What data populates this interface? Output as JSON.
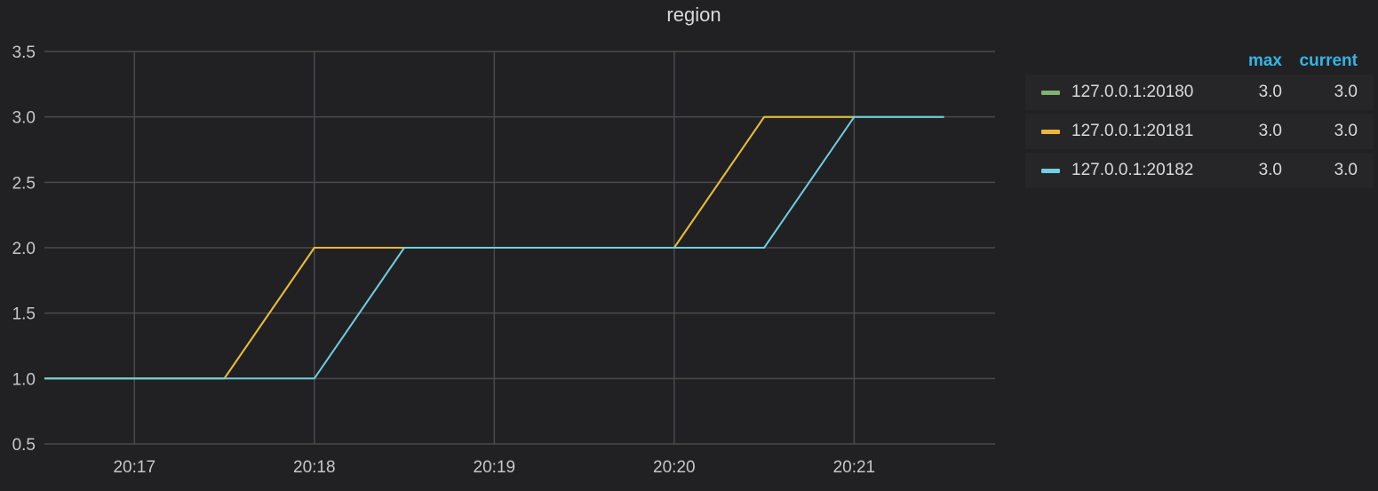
{
  "panel": {
    "title": "region"
  },
  "legend": {
    "headers": {
      "max": "max",
      "current": "current"
    },
    "items": [
      {
        "name": "127.0.0.1:20180",
        "color": "#7eb26d",
        "max": "3.0",
        "current": "3.0"
      },
      {
        "name": "127.0.0.1:20181",
        "color": "#eab839",
        "max": "3.0",
        "current": "3.0"
      },
      {
        "name": "127.0.0.1:20182",
        "color": "#6ed0e0",
        "max": "3.0",
        "current": "3.0"
      }
    ]
  },
  "chart_data": {
    "type": "line",
    "title": "region",
    "xlabel": "",
    "ylabel": "",
    "xlim": [
      "20:16:30",
      "20:21:47"
    ],
    "ylim": [
      0.5,
      3.5
    ],
    "y_ticks": [
      "0.5",
      "1.0",
      "1.5",
      "2.0",
      "2.5",
      "3.0",
      "3.5"
    ],
    "x_ticks": [
      "20:17",
      "20:18",
      "20:19",
      "20:20",
      "20:21"
    ],
    "grid": true,
    "legend_position": "right",
    "series": [
      {
        "name": "127.0.0.1:20180",
        "color": "#7eb26d",
        "points": [
          [
            "20:16:30",
            1
          ],
          [
            "20:17:30",
            1
          ],
          [
            "20:18:00",
            2
          ],
          [
            "20:20:00",
            2
          ],
          [
            "20:20:30",
            3
          ],
          [
            "20:21:30",
            3
          ]
        ]
      },
      {
        "name": "127.0.0.1:20181",
        "color": "#eab839",
        "points": [
          [
            "20:16:30",
            1
          ],
          [
            "20:17:30",
            1
          ],
          [
            "20:18:00",
            2
          ],
          [
            "20:18:30",
            2
          ],
          [
            "20:20:00",
            2
          ],
          [
            "20:20:30",
            3
          ],
          [
            "20:21:00",
            3
          ]
        ]
      },
      {
        "name": "127.0.0.1:20182",
        "color": "#6ed0e0",
        "points": [
          [
            "20:16:30",
            1
          ],
          [
            "20:18:00",
            1
          ],
          [
            "20:18:30",
            2
          ],
          [
            "20:20:30",
            2
          ],
          [
            "20:21:00",
            3
          ],
          [
            "20:21:30",
            3
          ]
        ]
      }
    ]
  }
}
